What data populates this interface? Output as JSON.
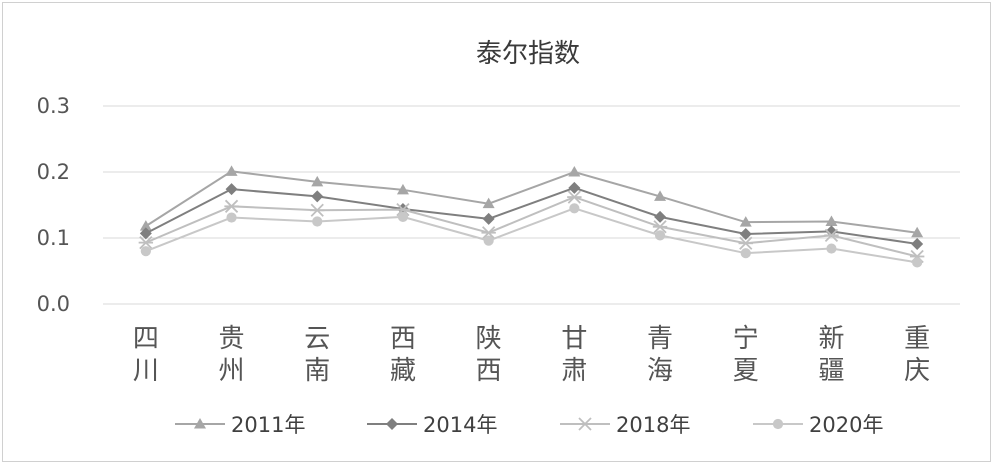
{
  "chart_data": {
    "type": "line",
    "title": "泰尔指数",
    "xlabel": "",
    "ylabel": "",
    "categories": [
      "四川",
      "贵州",
      "云南",
      "西藏",
      "陕西",
      "甘肃",
      "青海",
      "宁夏",
      "新疆",
      "重庆"
    ],
    "ylim": [
      0,
      0.3
    ],
    "yticks": [
      "0.0",
      "0.1",
      "0.2",
      "0.3"
    ],
    "grid": true,
    "legend_position": "bottom",
    "series": [
      {
        "name": "2011年",
        "marker": "triangle",
        "color": "#a6a6a6",
        "values": [
          0.118,
          0.201,
          0.185,
          0.173,
          0.152,
          0.2,
          0.163,
          0.124,
          0.125,
          0.108
        ]
      },
      {
        "name": "2014年",
        "marker": "diamond",
        "color": "#7f7f7f",
        "values": [
          0.107,
          0.174,
          0.163,
          0.144,
          0.129,
          0.176,
          0.132,
          0.106,
          0.11,
          0.091
        ]
      },
      {
        "name": "2018年",
        "marker": "star",
        "color": "#bfbfbf",
        "values": [
          0.093,
          0.148,
          0.142,
          0.143,
          0.108,
          0.162,
          0.117,
          0.092,
          0.104,
          0.072
        ]
      },
      {
        "name": "2020年",
        "marker": "circle",
        "color": "#c8c8c8",
        "values": [
          0.08,
          0.131,
          0.125,
          0.132,
          0.096,
          0.145,
          0.104,
          0.077,
          0.084,
          0.063
        ]
      }
    ]
  }
}
